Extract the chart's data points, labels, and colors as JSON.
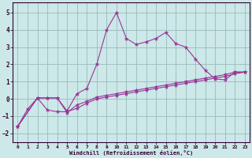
{
  "xlabel": "Windchill (Refroidissement éolien,°C)",
  "bg_color": "#cce8e8",
  "grid_color": "#99bbbb",
  "line_color": "#993399",
  "xlim": [
    -0.5,
    23.5
  ],
  "ylim": [
    -2.5,
    5.6
  ],
  "xticks": [
    0,
    1,
    2,
    3,
    4,
    5,
    6,
    7,
    8,
    9,
    10,
    11,
    12,
    13,
    14,
    15,
    16,
    17,
    18,
    19,
    20,
    21,
    22,
    23
  ],
  "yticks": [
    -2,
    -1,
    0,
    1,
    2,
    3,
    4,
    5
  ],
  "line1_x": [
    0,
    1,
    2,
    3,
    4,
    5,
    6,
    7,
    8,
    9,
    10,
    11,
    12,
    13,
    14,
    15,
    16,
    17,
    18,
    19,
    20,
    21,
    22,
    23
  ],
  "line1_y": [
    -1.6,
    -0.6,
    0.05,
    0.05,
    0.05,
    -0.7,
    0.3,
    0.6,
    2.0,
    4.0,
    5.0,
    3.5,
    3.15,
    3.3,
    3.5,
    3.85,
    3.2,
    3.0,
    2.3,
    1.65,
    1.15,
    1.1,
    1.55,
    1.55
  ],
  "line2_x": [
    0,
    2,
    3,
    4,
    5,
    6,
    7,
    8,
    9,
    10,
    11,
    12,
    13,
    14,
    15,
    16,
    17,
    18,
    19,
    20,
    21,
    22,
    23
  ],
  "line2_y": [
    -1.6,
    0.05,
    0.05,
    0.05,
    -0.8,
    -0.35,
    -0.15,
    0.1,
    0.2,
    0.3,
    0.4,
    0.5,
    0.6,
    0.7,
    0.8,
    0.9,
    1.0,
    1.1,
    1.2,
    1.3,
    1.4,
    1.55,
    1.55
  ],
  "line3_x": [
    0,
    2,
    3,
    4,
    5,
    6,
    7,
    8,
    9,
    10,
    11,
    12,
    13,
    14,
    15,
    16,
    17,
    18,
    19,
    20,
    21,
    22,
    23
  ],
  "line3_y": [
    -1.6,
    0.05,
    -0.65,
    -0.75,
    -0.75,
    -0.55,
    -0.25,
    0.0,
    0.1,
    0.2,
    0.3,
    0.4,
    0.5,
    0.6,
    0.7,
    0.8,
    0.9,
    1.0,
    1.1,
    1.2,
    1.3,
    1.45,
    1.55
  ]
}
